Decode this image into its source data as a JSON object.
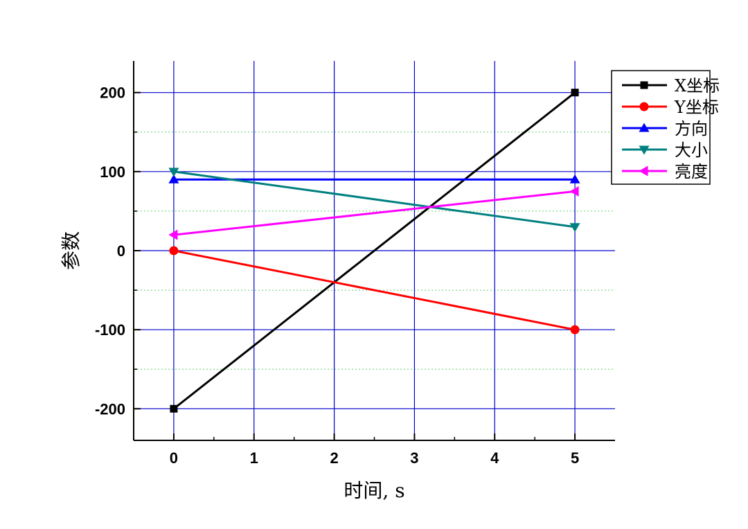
{
  "chart_data": {
    "type": "line",
    "xlabel": "时间, s",
    "ylabel": "参数",
    "xlim": [
      -0.5,
      5.5
    ],
    "ylim": [
      -240,
      240
    ],
    "xticks": [
      0,
      1,
      2,
      3,
      4,
      5
    ],
    "xtick_labels": [
      "0",
      "1",
      "2",
      "3",
      "4",
      "5"
    ],
    "yticks": [
      -200,
      -100,
      0,
      100,
      200
    ],
    "ytick_labels": [
      "-200",
      "-100",
      "0",
      "100",
      "200"
    ],
    "grid": {
      "x_major": true,
      "y_major": true,
      "y_minor": true,
      "color": "#0000cc",
      "minor_color": "#66cc66"
    },
    "legend_position": "top-right, outside plot",
    "series": [
      {
        "name": "X坐标",
        "color": "#000000",
        "marker": "square",
        "x": [
          0,
          5
        ],
        "y": [
          -200,
          200
        ]
      },
      {
        "name": "Y坐标",
        "color": "#ff0000",
        "marker": "circle",
        "x": [
          0,
          5
        ],
        "y": [
          0,
          -100
        ]
      },
      {
        "name": "方向",
        "color": "#0000ff",
        "marker": "triangle-up",
        "x": [
          0,
          5
        ],
        "y": [
          90,
          90
        ]
      },
      {
        "name": "大小",
        "color": "#008080",
        "marker": "triangle-down",
        "x": [
          0,
          5
        ],
        "y": [
          100,
          30
        ]
      },
      {
        "name": "亮度",
        "color": "#ff00ff",
        "marker": "triangle-left",
        "x": [
          0,
          5
        ],
        "y": [
          20,
          75
        ]
      }
    ]
  }
}
